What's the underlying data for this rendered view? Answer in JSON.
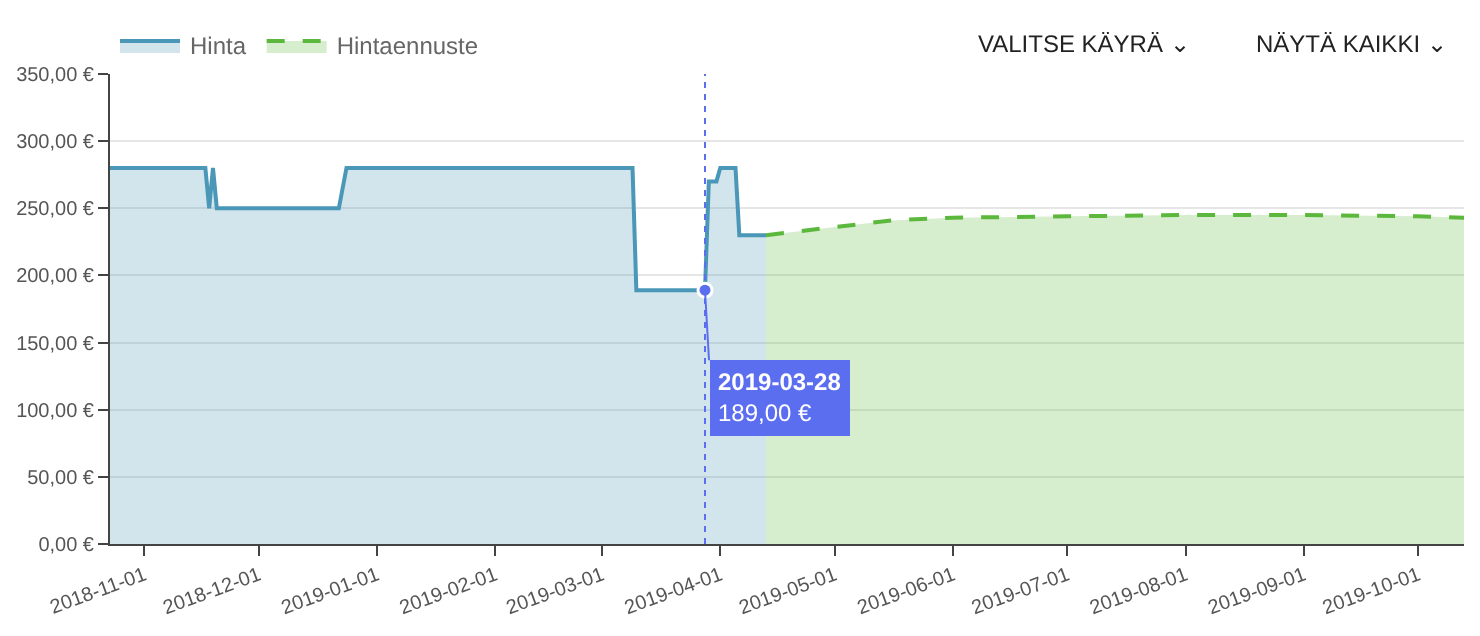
{
  "chart_data": {
    "type": "area",
    "series": [
      {
        "name": "Hinta",
        "color": "#4a97b8",
        "line_style": "solid",
        "x": [
          "2018-10-23",
          "2018-11-17",
          "2018-11-18",
          "2018-11-19",
          "2018-11-20",
          "2018-12-22",
          "2018-12-24",
          "2019-03-09",
          "2019-03-10",
          "2019-03-28",
          "2019-03-29",
          "2019-03-31",
          "2019-04-01",
          "2019-04-05",
          "2019-04-06",
          "2019-04-13"
        ],
        "values": [
          280,
          280,
          250,
          280,
          250,
          250,
          280,
          280,
          189,
          189,
          270,
          270,
          280,
          280,
          230,
          230
        ]
      },
      {
        "name": "Hintaennuste",
        "color": "#5cb83c",
        "line_style": "dashed",
        "x": [
          "2019-04-13",
          "2019-05-01",
          "2019-05-16",
          "2019-06-01",
          "2019-07-01",
          "2019-08-01",
          "2019-09-01",
          "2019-10-01",
          "2019-10-13"
        ],
        "values": [
          230,
          236,
          241,
          243,
          244,
          245,
          245,
          244,
          243
        ]
      }
    ],
    "xlim": [
      "2018-10-23",
      "2019-10-13"
    ],
    "xticks": [
      "2018-11-01",
      "2018-12-01",
      "2019-01-01",
      "2019-02-01",
      "2019-03-01",
      "2019-04-01",
      "2019-05-01",
      "2019-06-01",
      "2019-07-01",
      "2019-08-01",
      "2019-09-01",
      "2019-10-01"
    ],
    "ylim": [
      0,
      350
    ],
    "yticks": [
      {
        "value": 0,
        "label": "0,00 €"
      },
      {
        "value": 50,
        "label": "50,00 €"
      },
      {
        "value": 100,
        "label": "100,00 €"
      },
      {
        "value": 150,
        "label": "150,00 €"
      },
      {
        "value": 200,
        "label": "200,00 €"
      },
      {
        "value": 250,
        "label": "250,00 €"
      },
      {
        "value": 300,
        "label": "300,00 €"
      },
      {
        "value": 350,
        "label": "350,00 €"
      }
    ],
    "grid": "y",
    "legend": "top left",
    "ref_lines": [
      {
        "axis": "x",
        "value": "2019-03-28",
        "color": "#5b6ef0",
        "line_style": "dotted"
      }
    ],
    "annotations": [
      {
        "text": "2019-03-28\n189,00 €",
        "x": "2019-03-28",
        "y": 189
      },
      "VALITSE KÄYRÄ ⌄",
      "NÄYTÄ KAIKKI ⌄"
    ]
  }
}
